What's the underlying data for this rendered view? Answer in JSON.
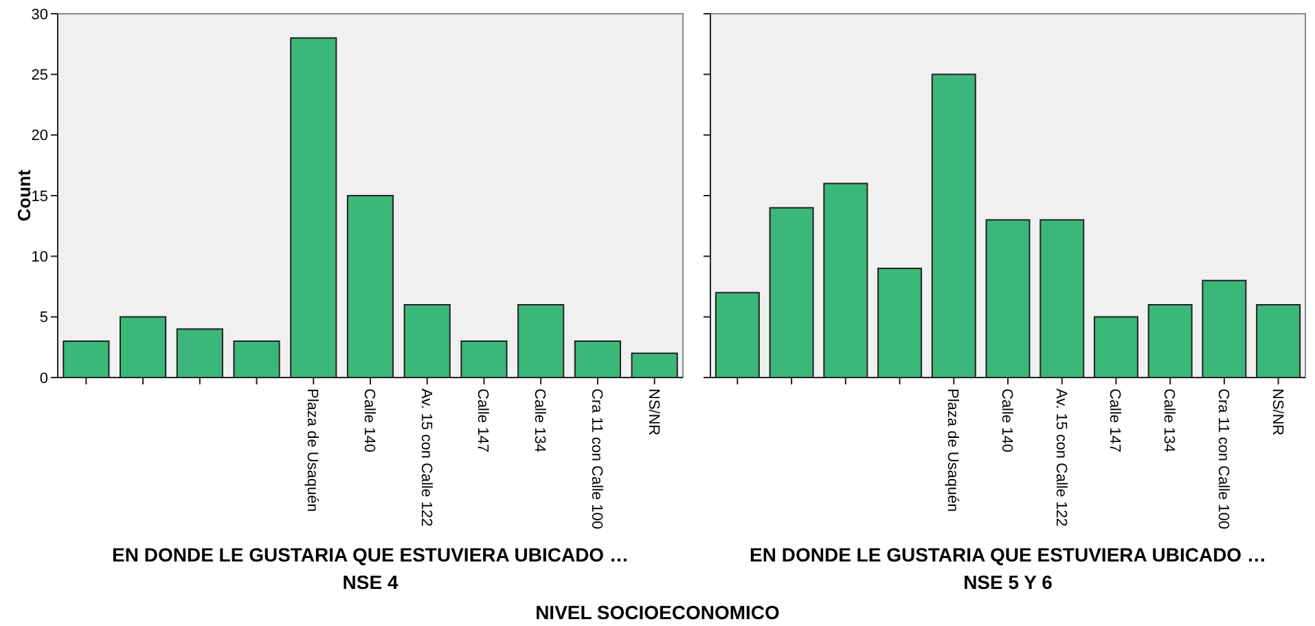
{
  "chart_data": [
    {
      "type": "bar",
      "title": "NSE 4",
      "xlabel": "EN DONDE LE GUSTARIA QUE ESTUVIERA UBICADO …",
      "ylabel": "Count",
      "categories": [
        null,
        null,
        null,
        null,
        "Plaza de Usaquén",
        "Calle 140",
        "Av. 15 con Calle 122",
        "Calle 147",
        "Calle 134",
        "Cra 11 con Calle 100",
        "NS/NR"
      ],
      "values": [
        3,
        5,
        4,
        3,
        28,
        15,
        6,
        3,
        6,
        3,
        2
      ],
      "color": "#3bb77a",
      "ylim": [
        0,
        30
      ],
      "yticks": [
        0,
        5,
        10,
        15,
        20,
        25,
        30
      ],
      "annotations": [
        "NIVEL SOCIOECONOMICO"
      ]
    },
    {
      "type": "bar",
      "title": "NSE 5 Y 6",
      "xlabel": "EN DONDE LE GUSTARIA QUE ESTUVIERA UBICADO …",
      "categories": [
        null,
        null,
        null,
        null,
        "Plaza de Usaquén",
        "Calle 140",
        "Av. 15 con Calle 122",
        "Calle 147",
        "Calle 134",
        "Cra 11 con Calle 100",
        "NS/NR"
      ],
      "values": [
        7,
        14,
        16,
        9,
        25,
        13,
        13,
        5,
        6,
        8,
        6
      ],
      "color": "#3bb77a",
      "ylim": [
        0,
        30
      ],
      "yticks": [
        0,
        5,
        10,
        15,
        20,
        25,
        30
      ],
      "tick_labels": "x"
    }
  ]
}
